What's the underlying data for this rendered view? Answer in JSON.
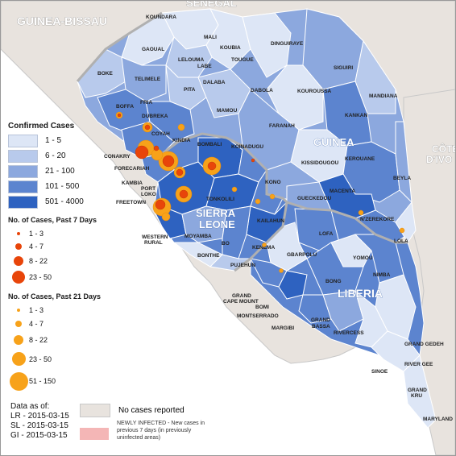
{
  "colors": {
    "sea": "#ffffff",
    "no_cases": "#e8e3de",
    "border_country": "#b0b0b0",
    "range_1_5": "#dde6f6",
    "range_6_20": "#b8caec",
    "range_21_100": "#8ca8de",
    "range_101_500": "#5c84cf",
    "range_501_4000": "#2e62c0",
    "dot_7day": "#e8450a",
    "dot_21day": "#f7a21a",
    "newly_infected": "#f4b6b6"
  },
  "countries": {
    "guinea_bissau": "GUINEA-BISSAU",
    "senegal": "SENEGAL",
    "guinea": "GUINEA",
    "sierra_leone_1": "SIERRA",
    "sierra_leone_2": "LEONE",
    "liberia": "LIBERIA",
    "cote_1": "CÔTE",
    "cote_2": "D'IVO"
  },
  "districts": {
    "koundara": "KOUNDARA",
    "mali": "MALI",
    "gaoual": "GAOUAL",
    "koubia": "KOUBIA",
    "dinguiraye": "DINGUIRAYE",
    "lelouma": "LELOUMA",
    "tougue": "TOUGUE",
    "labe": "LABE",
    "boke": "BOKE",
    "telimele": "TELIMELE",
    "pita": "PITA",
    "dalaba": "DALABA",
    "siguiri": "SIGUIRI",
    "dabola": "DABOLA",
    "kouroussa": "KOUROUSSA",
    "mandiana": "MANDIANA",
    "boffa": "BOFFA",
    "fria": "FRIA",
    "mamou": "MAMOU",
    "kankan": "KANKAN",
    "dubreka": "DUBREKA",
    "coyah": "COYAH",
    "faranah": "FARANAH",
    "kindia": "KINDIA",
    "bombali": "BOMBALI",
    "koinadugu": "KOINADUGU",
    "conakry": "CONAKRY",
    "kissidougou": "KISSIDOUGOU",
    "kerouane": "KEROUANE",
    "beyla": "BEYLA",
    "forecariah": "FORECARIAH",
    "kambia": "KAMBIA",
    "port_loko_1": "PORT",
    "port_loko_2": "LOKO",
    "kono": "KONO",
    "macenta": "MACENTA",
    "gueckedou": "GUECKEDOU",
    "tonkolili": "TONKOLILI",
    "freetown": "FREETOWN",
    "kailahun": "KAILAHUN",
    "nzerekore": "N'ZEREKORE",
    "moyamba": "MOYAMBA",
    "bo": "BO",
    "lofa": "LOFA",
    "lola": "LOLA",
    "western_1": "WESTERN",
    "western_2": "RURAL",
    "kenema": "KENEMA",
    "yomou": "YOMOU",
    "gbarpolu": "GBARPOLU",
    "bonthe": "BONTHE",
    "pujehun": "PUJEHUN",
    "nimba": "NIMBA",
    "bong": "BONG",
    "grand_cape_1": "GRAND",
    "grand_cape_2": "CAPE MOUNT",
    "bomi": "BOMI",
    "montserrado": "MONTSERRADO",
    "margibi": "MARGIBI",
    "grand_bassa_1": "GRAND",
    "grand_bassa_2": "BASSA",
    "rivercess": "RIVERCESS",
    "grand_gedeh": "GRAND GEDEH",
    "river_gee_1": "RIVER GEE",
    "sinoe": "SINOE",
    "grand_kru_1": "GRAND",
    "grand_kru_2": "KRU",
    "maryland": "MARYLAND"
  },
  "legend": {
    "confirmed_title": "Confirmed Cases",
    "confirmed_ranges": [
      "1 - 5",
      "6 - 20",
      "21 - 100",
      "101 - 500",
      "501 - 4000"
    ],
    "past7_title": "No. of Cases, Past 7 Days",
    "past7_ranges": [
      "1 - 3",
      "4 - 7",
      "8 - 22",
      "23 - 50"
    ],
    "past21_title": "No. of Cases, Past 21 Days",
    "past21_ranges": [
      "1 - 3",
      "4 - 7",
      "8 - 22",
      "23 - 50",
      "51 - 150"
    ],
    "asof_title": "Data as of:",
    "asof_lines": [
      "LR - 2015-03-15",
      "SL - 2015-03-15",
      "GI - 2015-03-15"
    ],
    "no_cases": "No cases reported",
    "newly_infected": "NEWLY INFECTED - New cases in previous 7 days (in previously uninfected areas)"
  }
}
